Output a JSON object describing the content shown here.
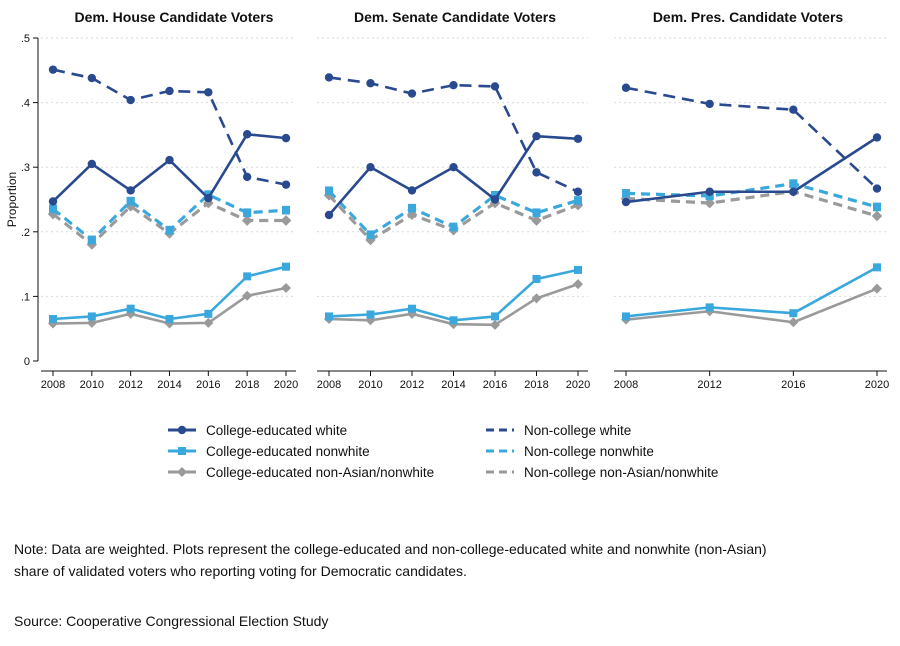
{
  "colors": {
    "college_white": "#2a4a8f",
    "college_nonwhite": "#3aa8dc",
    "college_nonasian": "#9a9a9a",
    "grid": "#d9d9d9"
  },
  "legend": [
    {
      "series": "College-educated white",
      "style": "solid",
      "color_key": "college_white",
      "marker": "circle"
    },
    {
      "series": "Non-college white",
      "style": "dashed",
      "color_key": "college_white",
      "marker": "none"
    },
    {
      "series": "College-educated nonwhite",
      "style": "solid",
      "color_key": "college_nonwhite",
      "marker": "square"
    },
    {
      "series": "Non-college nonwhite",
      "style": "dashed",
      "color_key": "college_nonwhite",
      "marker": "none"
    },
    {
      "series": "College-educated non-Asian/nonwhite",
      "style": "solid",
      "color_key": "college_nonasian",
      "marker": "diamond"
    },
    {
      "series": "Non-college non-Asian/nonwhite",
      "style": "dashed",
      "color_key": "college_nonasian",
      "marker": "none"
    }
  ],
  "note": "Note: Data are weighted. Plots represent the college-educated and non-college-educated white and nonwhite (non-Asian) share of validated voters who reporting voting for Democratic candidates.",
  "source": "Source: Cooperative Congressional Election Study",
  "chart_data": [
    {
      "type": "line",
      "title": "Dem. House Candidate Voters",
      "ylabel": "Proportion",
      "ylim": [
        0,
        0.5
      ],
      "yticks": [
        0,
        0.1,
        0.2,
        0.3,
        0.4,
        0.5
      ],
      "ytick_labels": [
        "0",
        ".1",
        ".2",
        ".3",
        ".4",
        ".5"
      ],
      "grid": true,
      "x": [
        2008,
        2010,
        2012,
        2014,
        2016,
        2018,
        2020
      ],
      "xtick_labels": [
        "2008",
        "2010",
        "2012",
        "2014",
        "2016",
        "2018",
        "2020"
      ],
      "series": [
        {
          "name": "College-educated white",
          "values": [
            0.247,
            0.305,
            0.264,
            0.311,
            0.252,
            0.351,
            0.345
          ]
        },
        {
          "name": "Non-college white",
          "values": [
            0.451,
            0.438,
            0.404,
            0.418,
            0.416,
            0.285,
            0.273
          ]
        },
        {
          "name": "College-educated nonwhite",
          "values": [
            0.236,
            0.188,
            0.248,
            0.203,
            0.258,
            0.23,
            0.234
          ]
        },
        {
          "name": "Non-college nonwhite",
          "values": [
            0.235,
            0.187,
            0.247,
            0.202,
            0.257,
            0.229,
            0.233
          ]
        },
        {
          "name": "College-educated non-Asian/nonwhite",
          "values": [
            0.228,
            0.181,
            0.24,
            0.198,
            0.245,
            0.218,
            0.218
          ]
        },
        {
          "name": "Non-college non-Asian/nonwhite",
          "values": [
            0.227,
            0.18,
            0.239,
            0.197,
            0.244,
            0.217,
            0.217
          ]
        },
        {
          "name": "College-educated nonwhite (low)",
          "values": [
            0.065,
            0.069,
            0.081,
            0.065,
            0.073,
            0.131,
            0.146
          ]
        },
        {
          "name": "College-educated non-Asian/nonwhite (low)",
          "values": [
            0.058,
            0.059,
            0.073,
            0.058,
            0.059,
            0.101,
            0.113
          ]
        }
      ]
    },
    {
      "type": "line",
      "title": "Dem. Senate Candidate Voters",
      "ylim": [
        0,
        0.5
      ],
      "grid": true,
      "x": [
        2008,
        2010,
        2012,
        2014,
        2016,
        2018,
        2020
      ],
      "xtick_labels": [
        "2008",
        "2010",
        "2012",
        "2014",
        "2016",
        "2018",
        "2020"
      ],
      "series": [
        {
          "name": "College-educated white",
          "values": [
            0.226,
            0.3,
            0.264,
            0.3,
            0.25,
            0.348,
            0.344
          ]
        },
        {
          "name": "Non-college white",
          "values": [
            0.439,
            0.43,
            0.414,
            0.427,
            0.425,
            0.292,
            0.262
          ]
        },
        {
          "name": "College-educated nonwhite",
          "values": [
            0.264,
            0.196,
            0.237,
            0.208,
            0.257,
            0.23,
            0.249
          ]
        },
        {
          "name": "Non-college nonwhite",
          "values": [
            0.263,
            0.195,
            0.236,
            0.207,
            0.256,
            0.229,
            0.248
          ]
        },
        {
          "name": "College-educated non-Asian/nonwhite",
          "values": [
            0.257,
            0.188,
            0.227,
            0.203,
            0.245,
            0.218,
            0.242
          ]
        },
        {
          "name": "Non-college non-Asian/nonwhite",
          "values": [
            0.256,
            0.187,
            0.226,
            0.202,
            0.244,
            0.217,
            0.241
          ]
        },
        {
          "name": "College-educated nonwhite (low)",
          "values": [
            0.069,
            0.072,
            0.081,
            0.063,
            0.069,
            0.127,
            0.141
          ]
        },
        {
          "name": "College-educated non-Asian/nonwhite (low)",
          "values": [
            0.065,
            0.063,
            0.073,
            0.057,
            0.056,
            0.097,
            0.119
          ]
        }
      ]
    },
    {
      "type": "line",
      "title": "Dem. Pres. Candidate Voters",
      "ylim": [
        0,
        0.5
      ],
      "grid": true,
      "x": [
        2008,
        2012,
        2016,
        2020
      ],
      "xtick_labels": [
        "2008",
        "2012",
        "2016",
        "2020"
      ],
      "series": [
        {
          "name": "College-educated white",
          "values": [
            0.246,
            0.262,
            0.262,
            0.346
          ]
        },
        {
          "name": "Non-college white",
          "values": [
            0.423,
            0.398,
            0.389,
            0.267
          ]
        },
        {
          "name": "College-educated nonwhite",
          "values": [
            0.26,
            0.256,
            0.275,
            0.239
          ]
        },
        {
          "name": "Non-college nonwhite",
          "values": [
            0.259,
            0.255,
            0.274,
            0.238
          ]
        },
        {
          "name": "College-educated non-Asian/nonwhite",
          "values": [
            0.252,
            0.245,
            0.263,
            0.225
          ]
        },
        {
          "name": "Non-college non-Asian/nonwhite",
          "values": [
            0.251,
            0.244,
            0.262,
            0.224
          ]
        },
        {
          "name": "College-educated nonwhite (low)",
          "values": [
            0.069,
            0.083,
            0.074,
            0.145
          ]
        },
        {
          "name": "College-educated non-Asian/nonwhite (low)",
          "values": [
            0.064,
            0.077,
            0.06,
            0.112
          ]
        }
      ]
    }
  ]
}
